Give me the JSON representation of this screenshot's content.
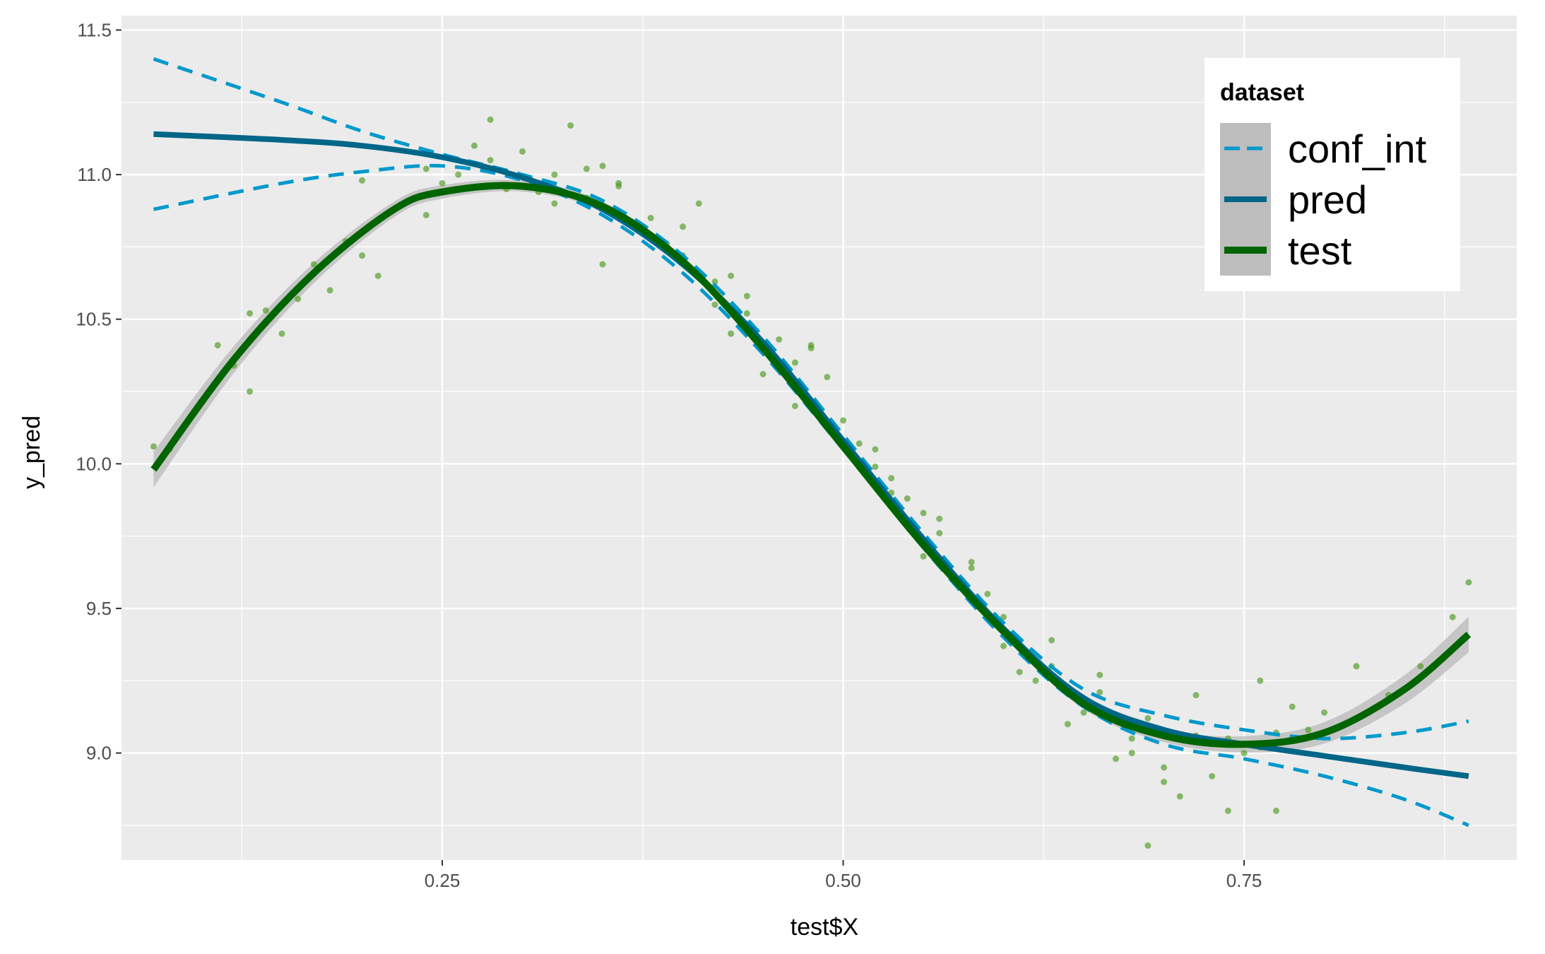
{
  "chart_data": {
    "type": "line",
    "xlabel": "test$X",
    "ylabel": "y_pred",
    "xlim": [
      0.05,
      0.92
    ],
    "ylim": [
      8.63,
      11.55
    ],
    "x_ticks": [
      0.25,
      0.5,
      0.75
    ],
    "x_tick_labels": [
      "0.25",
      "0.50",
      "0.75"
    ],
    "y_ticks": [
      9.0,
      9.5,
      10.0,
      10.5,
      11.0,
      11.5
    ],
    "y_tick_labels": [
      "9.0",
      "9.5",
      "10.0",
      "10.5",
      "11.0",
      "11.5"
    ],
    "grid": true,
    "legend": {
      "title": "dataset",
      "position": "top-right",
      "entries": [
        "conf_int",
        "pred",
        "test"
      ]
    },
    "colors": {
      "panel": "#ebebeb",
      "grid": "#ffffff",
      "conf_int": "#0099cc",
      "pred": "#006688",
      "test": "#006400",
      "points": "#4c9a1e",
      "ribbon": "#bdbdbd"
    },
    "series": [
      {
        "name": "test",
        "kind": "smooth",
        "x": [
          0.07,
          0.12,
          0.17,
          0.22,
          0.25,
          0.3,
          0.35,
          0.4,
          0.45,
          0.5,
          0.55,
          0.6,
          0.65,
          0.7,
          0.75,
          0.8,
          0.85,
          0.89
        ],
        "y": [
          9.98,
          10.36,
          10.66,
          10.88,
          10.94,
          10.96,
          10.89,
          10.7,
          10.4,
          10.06,
          9.72,
          9.42,
          9.17,
          9.06,
          9.03,
          9.07,
          9.22,
          9.41
        ]
      },
      {
        "name": "pred",
        "kind": "line",
        "x": [
          0.07,
          0.15,
          0.2,
          0.25,
          0.3,
          0.35,
          0.4,
          0.45,
          0.5,
          0.55,
          0.6,
          0.65,
          0.7,
          0.75,
          0.8,
          0.85,
          0.89
        ],
        "y": [
          11.14,
          11.12,
          11.1,
          11.06,
          10.99,
          10.88,
          10.69,
          10.42,
          10.08,
          9.74,
          9.43,
          9.19,
          9.08,
          9.03,
          8.99,
          8.95,
          8.92
        ]
      },
      {
        "name": "conf_int upper",
        "kind": "dashed",
        "x": [
          0.07,
          0.15,
          0.2,
          0.25,
          0.3,
          0.35,
          0.4,
          0.45,
          0.5,
          0.55,
          0.6,
          0.65,
          0.7,
          0.75,
          0.8,
          0.85,
          0.89
        ],
        "y": [
          11.4,
          11.25,
          11.15,
          11.07,
          11.0,
          10.91,
          10.72,
          10.44,
          10.1,
          9.76,
          9.45,
          9.22,
          9.13,
          9.08,
          9.05,
          9.07,
          9.11
        ]
      },
      {
        "name": "conf_int lower",
        "kind": "dashed",
        "x": [
          0.07,
          0.15,
          0.2,
          0.25,
          0.3,
          0.35,
          0.4,
          0.45,
          0.5,
          0.55,
          0.6,
          0.65,
          0.7,
          0.75,
          0.8,
          0.85,
          0.89
        ],
        "y": [
          10.88,
          10.97,
          11.01,
          11.03,
          10.98,
          10.86,
          10.66,
          10.38,
          10.05,
          9.71,
          9.4,
          9.16,
          9.03,
          8.98,
          8.92,
          8.84,
          8.75
        ]
      }
    ],
    "scatter": {
      "name": "test points",
      "x": [
        0.07,
        0.08,
        0.11,
        0.12,
        0.13,
        0.14,
        0.15,
        0.16,
        0.17,
        0.18,
        0.19,
        0.2,
        0.21,
        0.22,
        0.23,
        0.24,
        0.25,
        0.26,
        0.27,
        0.28,
        0.29,
        0.3,
        0.31,
        0.32,
        0.33,
        0.34,
        0.35,
        0.36,
        0.37,
        0.38,
        0.39,
        0.4,
        0.41,
        0.42,
        0.43,
        0.44,
        0.45,
        0.46,
        0.47,
        0.48,
        0.49,
        0.5,
        0.51,
        0.52,
        0.53,
        0.54,
        0.55,
        0.56,
        0.57,
        0.58,
        0.59,
        0.6,
        0.61,
        0.62,
        0.63,
        0.64,
        0.65,
        0.66,
        0.67,
        0.68,
        0.69,
        0.7,
        0.71,
        0.72,
        0.73,
        0.74,
        0.75,
        0.76,
        0.77,
        0.78,
        0.79,
        0.8,
        0.82,
        0.84,
        0.86,
        0.88,
        0.89,
        0.2,
        0.24,
        0.28,
        0.32,
        0.36,
        0.4,
        0.44,
        0.48,
        0.52,
        0.56,
        0.6,
        0.64,
        0.68,
        0.72,
        0.76,
        0.34,
        0.42,
        0.47,
        0.53,
        0.58,
        0.63,
        0.69,
        0.74,
        0.13,
        0.26,
        0.35,
        0.43,
        0.55,
        0.66,
        0.7,
        0.77
      ],
      "y": [
        10.06,
        10.05,
        10.41,
        10.34,
        10.25,
        10.53,
        10.45,
        10.57,
        10.69,
        10.6,
        10.77,
        10.72,
        10.65,
        10.88,
        10.91,
        11.02,
        10.97,
        11.05,
        11.1,
        11.19,
        10.95,
        11.08,
        10.94,
        11.0,
        11.17,
        10.92,
        10.69,
        10.96,
        10.83,
        10.85,
        10.76,
        10.72,
        10.9,
        10.55,
        10.45,
        10.52,
        10.31,
        10.43,
        10.2,
        10.4,
        10.3,
        10.15,
        10.07,
        9.99,
        9.9,
        9.88,
        9.68,
        9.81,
        9.6,
        9.66,
        9.55,
        9.37,
        9.28,
        9.25,
        9.3,
        9.1,
        9.14,
        9.27,
        8.98,
        9.05,
        8.68,
        8.95,
        8.85,
        9.2,
        8.92,
        8.8,
        9.0,
        9.25,
        8.8,
        9.16,
        9.08,
        9.14,
        9.3,
        9.2,
        9.3,
        9.47,
        9.59,
        10.98,
        10.86,
        11.05,
        10.9,
        10.97,
        10.82,
        10.58,
        10.41,
        10.05,
        9.76,
        9.47,
        9.22,
        9.0,
        9.06,
        9.02,
        11.02,
        10.63,
        10.35,
        9.95,
        9.64,
        9.39,
        9.12,
        9.05,
        10.52,
        11.0,
        11.03,
        10.65,
        9.83,
        9.21,
        8.9,
        9.07
      ]
    }
  }
}
